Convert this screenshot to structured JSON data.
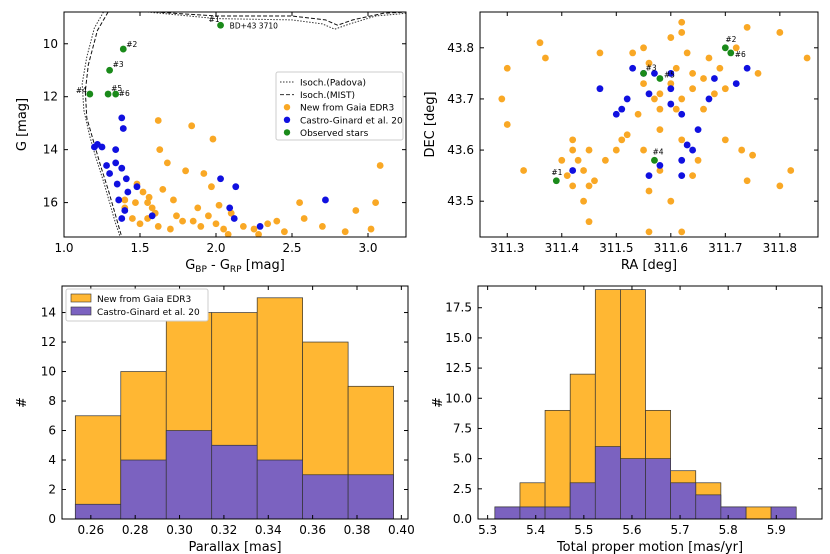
{
  "chart_data": [
    {
      "id": "cmd",
      "type": "scatter",
      "xlabel": "G_BP - G_RP [mag]",
      "xlabel_main": "G",
      "xlabel_sub1": "BP",
      "xlabel_mid": " - G",
      "xlabel_sub2": "RP",
      "xlabel_tail": " [mag]",
      "ylabel": "G [mag]",
      "xlim": [
        1.0,
        3.25
      ],
      "ylim": [
        17.3,
        8.8
      ],
      "y_inverted": true,
      "xticks": [
        1.0,
        1.5,
        2.0,
        2.5,
        3.0
      ],
      "xtick_labels": [
        "1.0",
        "1.5",
        "2.0",
        "2.5",
        "3.0"
      ],
      "yticks": [
        10,
        12,
        14,
        16
      ],
      "ytick_labels": [
        "10",
        "12",
        "14",
        "16"
      ],
      "legend_position": "middle-right",
      "legend": [
        "Isoch.(Padova)",
        "Isoch.(MIST)",
        "New from Gaia EDR3",
        "Castro-Ginard et al. 20",
        "Observed stars"
      ],
      "colors": {
        "new": "#f9a825",
        "castro": "#1010e0",
        "observed": "#1a8a1a"
      },
      "isochrone_padova": [
        [
          1.26,
          8.8
        ],
        [
          1.2,
          9.4
        ],
        [
          1.15,
          10.5
        ],
        [
          1.12,
          11.5
        ],
        [
          1.13,
          12.5
        ],
        [
          1.17,
          13.5
        ],
        [
          1.21,
          14.3
        ],
        [
          1.26,
          15.2
        ],
        [
          1.3,
          16.0
        ],
        [
          1.34,
          16.8
        ],
        [
          1.37,
          17.3
        ]
      ],
      "isochrone_padova_top": [
        [
          1.55,
          8.8
        ],
        [
          2.0,
          9.05
        ],
        [
          2.5,
          9.1
        ],
        [
          2.7,
          9.25
        ],
        [
          2.78,
          9.45
        ],
        [
          2.88,
          9.25
        ],
        [
          3.05,
          8.95
        ],
        [
          3.25,
          8.85
        ]
      ],
      "isochrone_mist": [
        [
          1.29,
          8.8
        ],
        [
          1.22,
          9.5
        ],
        [
          1.16,
          10.8
        ],
        [
          1.14,
          11.8
        ],
        [
          1.15,
          12.8
        ],
        [
          1.2,
          13.8
        ],
        [
          1.24,
          14.6
        ],
        [
          1.29,
          15.5
        ],
        [
          1.33,
          16.3
        ],
        [
          1.37,
          17.1
        ],
        [
          1.38,
          17.3
        ]
      ],
      "isochrone_mist_top": [
        [
          1.6,
          8.8
        ],
        [
          2.0,
          8.95
        ],
        [
          2.5,
          8.95
        ],
        [
          2.72,
          9.1
        ],
        [
          2.8,
          9.3
        ],
        [
          2.9,
          9.1
        ],
        [
          3.1,
          8.85
        ],
        [
          3.25,
          8.8
        ]
      ],
      "new_points": [
        [
          1.62,
          12.9
        ],
        [
          1.84,
          13.1
        ],
        [
          1.98,
          13.6
        ],
        [
          1.63,
          14.0
        ],
        [
          1.68,
          14.5
        ],
        [
          1.8,
          14.8
        ],
        [
          1.92,
          14.9
        ],
        [
          1.97,
          15.4
        ],
        [
          1.48,
          15.3
        ],
        [
          1.52,
          15.6
        ],
        [
          1.4,
          15.9
        ],
        [
          1.55,
          16.0
        ],
        [
          1.58,
          16.2
        ],
        [
          1.6,
          16.4
        ],
        [
          1.45,
          16.6
        ],
        [
          1.5,
          16.8
        ],
        [
          1.62,
          16.9
        ],
        [
          1.7,
          17.0
        ],
        [
          1.74,
          16.5
        ],
        [
          1.78,
          16.7
        ],
        [
          1.85,
          16.7
        ],
        [
          1.9,
          16.9
        ],
        [
          1.95,
          16.5
        ],
        [
          2.0,
          16.8
        ],
        [
          2.05,
          17.0
        ],
        [
          2.1,
          16.4
        ],
        [
          2.18,
          16.9
        ],
        [
          2.25,
          17.0
        ],
        [
          2.34,
          16.8
        ],
        [
          2.4,
          16.7
        ],
        [
          2.55,
          16.0
        ],
        [
          2.58,
          16.6
        ],
        [
          2.7,
          16.9
        ],
        [
          2.85,
          17.1
        ],
        [
          2.92,
          16.3
        ],
        [
          3.02,
          17.0
        ],
        [
          3.05,
          16.0
        ],
        [
          3.08,
          14.6
        ],
        [
          2.28,
          17.2
        ],
        [
          1.4,
          16.2
        ],
        [
          1.47,
          16.0
        ],
        [
          1.56,
          15.8
        ],
        [
          1.65,
          15.5
        ],
        [
          1.72,
          15.9
        ],
        [
          1.88,
          16.2
        ],
        [
          2.02,
          16.1
        ],
        [
          2.08,
          17.2
        ],
        [
          2.45,
          17.1
        ],
        [
          1.55,
          16.6
        ]
      ],
      "castro_points": [
        [
          1.38,
          12.8
        ],
        [
          1.39,
          13.2
        ],
        [
          1.22,
          13.8
        ],
        [
          1.2,
          13.9
        ],
        [
          1.25,
          13.9
        ],
        [
          1.34,
          14.0
        ],
        [
          1.34,
          14.5
        ],
        [
          1.28,
          14.6
        ],
        [
          1.38,
          14.7
        ],
        [
          1.3,
          14.9
        ],
        [
          1.41,
          15.1
        ],
        [
          1.35,
          15.3
        ],
        [
          1.48,
          15.4
        ],
        [
          1.42,
          15.6
        ],
        [
          1.4,
          16.3
        ],
        [
          1.38,
          16.6
        ],
        [
          1.58,
          16.5
        ],
        [
          2.03,
          15.1
        ],
        [
          2.13,
          15.4
        ],
        [
          2.09,
          16.2
        ],
        [
          2.12,
          16.6
        ],
        [
          2.29,
          16.9
        ],
        [
          2.72,
          15.9
        ],
        [
          1.36,
          15.9
        ]
      ],
      "observed_points": [
        [
          2.03,
          9.3
        ],
        [
          1.39,
          10.2
        ],
        [
          1.3,
          11.0
        ],
        [
          1.17,
          11.9
        ],
        [
          1.29,
          11.9
        ],
        [
          1.34,
          11.9
        ]
      ],
      "observed_labels": [
        "#1",
        "#2",
        "#3",
        "#4",
        "#5",
        "#6"
      ],
      "annotation": "BD+43  3710"
    },
    {
      "id": "sky",
      "type": "scatter",
      "xlabel": "RA [deg]",
      "ylabel": "DEC [deg]",
      "xlim": [
        311.25,
        311.87
      ],
      "ylim": [
        43.43,
        43.87
      ],
      "xticks": [
        311.3,
        311.4,
        311.5,
        311.6,
        311.7,
        311.8
      ],
      "xtick_labels": [
        "311.3",
        "311.4",
        "311.5",
        "311.6",
        "311.7",
        "311.8"
      ],
      "yticks": [
        43.5,
        43.6,
        43.7,
        43.8
      ],
      "ytick_labels": [
        "43.5",
        "43.6",
        "43.7",
        "43.8"
      ],
      "new_points": [
        [
          311.29,
          43.7
        ],
        [
          311.3,
          43.76
        ],
        [
          311.3,
          43.65
        ],
        [
          311.36,
          43.81
        ],
        [
          311.37,
          43.78
        ],
        [
          311.33,
          43.56
        ],
        [
          311.42,
          43.62
        ],
        [
          311.42,
          43.6
        ],
        [
          311.43,
          43.58
        ],
        [
          311.45,
          43.6
        ],
        [
          311.44,
          43.56
        ],
        [
          311.45,
          43.53
        ],
        [
          311.46,
          43.54
        ],
        [
          311.44,
          43.5
        ],
        [
          311.45,
          43.46
        ],
        [
          311.42,
          43.53
        ],
        [
          311.41,
          43.55
        ],
        [
          311.4,
          43.58
        ],
        [
          311.48,
          43.58
        ],
        [
          311.5,
          43.6
        ],
        [
          311.47,
          43.79
        ],
        [
          311.55,
          43.8
        ],
        [
          311.53,
          43.79
        ],
        [
          311.56,
          43.77
        ],
        [
          311.55,
          43.73
        ],
        [
          311.57,
          43.7
        ],
        [
          311.58,
          43.71
        ],
        [
          311.58,
          43.68
        ],
        [
          311.6,
          43.73
        ],
        [
          311.61,
          43.76
        ],
        [
          311.62,
          43.83
        ],
        [
          311.63,
          43.79
        ],
        [
          311.64,
          43.75
        ],
        [
          311.64,
          43.72
        ],
        [
          311.66,
          43.74
        ],
        [
          311.67,
          43.78
        ],
        [
          311.68,
          43.71
        ],
        [
          311.66,
          43.68
        ],
        [
          311.62,
          43.85
        ],
        [
          311.6,
          43.82
        ],
        [
          311.72,
          43.8
        ],
        [
          311.74,
          43.84
        ],
        [
          311.76,
          43.75
        ],
        [
          311.8,
          43.83
        ],
        [
          311.85,
          43.78
        ],
        [
          311.73,
          43.6
        ],
        [
          311.75,
          43.59
        ],
        [
          311.74,
          43.54
        ],
        [
          311.8,
          43.53
        ],
        [
          311.82,
          43.56
        ],
        [
          311.7,
          43.62
        ],
        [
          311.58,
          43.64
        ],
        [
          311.55,
          43.6
        ],
        [
          311.58,
          43.56
        ],
        [
          311.56,
          43.52
        ],
        [
          311.6,
          43.5
        ],
        [
          311.64,
          43.55
        ],
        [
          311.65,
          43.58
        ],
        [
          311.62,
          43.62
        ],
        [
          311.56,
          43.44
        ],
        [
          311.62,
          43.44
        ],
        [
          311.52,
          43.63
        ],
        [
          311.54,
          43.67
        ],
        [
          311.51,
          43.62
        ],
        [
          311.62,
          43.7
        ],
        [
          311.61,
          43.68
        ],
        [
          311.69,
          43.76
        ],
        [
          311.7,
          43.72
        ]
      ],
      "castro_points": [
        [
          311.47,
          43.72
        ],
        [
          311.5,
          43.67
        ],
        [
          311.52,
          43.7
        ],
        [
          311.53,
          43.76
        ],
        [
          311.55,
          43.75
        ],
        [
          311.56,
          43.71
        ],
        [
          311.57,
          43.75
        ],
        [
          311.6,
          43.72
        ],
        [
          311.6,
          43.69
        ],
        [
          311.62,
          43.67
        ],
        [
          311.63,
          43.61
        ],
        [
          311.64,
          43.6
        ],
        [
          311.65,
          43.64
        ],
        [
          311.67,
          43.7
        ],
        [
          311.68,
          43.74
        ],
        [
          311.72,
          43.73
        ],
        [
          311.74,
          43.76
        ],
        [
          311.56,
          43.55
        ],
        [
          311.58,
          43.57
        ],
        [
          311.62,
          43.55
        ],
        [
          311.62,
          43.58
        ],
        [
          311.42,
          43.56
        ],
        [
          311.51,
          43.68
        ],
        [
          311.6,
          43.75
        ]
      ],
      "observed_points": [
        [
          311.39,
          43.54
        ],
        [
          311.7,
          43.8
        ],
        [
          311.55,
          43.75
        ],
        [
          311.57,
          43.58
        ],
        [
          311.58,
          43.74
        ],
        [
          311.71,
          43.79
        ]
      ],
      "observed_labels": [
        "#1",
        "#2",
        "#3",
        "#4",
        "#5",
        "#6"
      ]
    },
    {
      "id": "parallax",
      "type": "bar",
      "xlabel": "Parallax [mas]",
      "ylabel": "#",
      "xlim": [
        0.247,
        0.403
      ],
      "ylim": [
        0,
        15.8
      ],
      "xticks": [
        0.26,
        0.28,
        0.3,
        0.32,
        0.34,
        0.36,
        0.38,
        0.4
      ],
      "xtick_labels": [
        "0.26",
        "0.28",
        "0.30",
        "0.32",
        "0.34",
        "0.36",
        "0.38",
        "0.40"
      ],
      "yticks": [
        0,
        2,
        4,
        6,
        8,
        10,
        12,
        14
      ],
      "ytick_labels": [
        "0",
        "2",
        "4",
        "6",
        "8",
        "10",
        "12",
        "14"
      ],
      "bin_edges": [
        0.253,
        0.2735,
        0.294,
        0.3145,
        0.335,
        0.3555,
        0.376,
        0.3965
      ],
      "legend": [
        "New from Gaia EDR3",
        "Castro-Ginard et al. 20"
      ],
      "legend_position": "top-left",
      "series": [
        {
          "name": "New from Gaia EDR3",
          "values": [
            7,
            10,
            14,
            14,
            15,
            12,
            9
          ]
        },
        {
          "name": "Castro-Ginard et al. 20",
          "values": [
            1,
            4,
            6,
            5,
            4,
            3,
            3
          ]
        }
      ]
    },
    {
      "id": "pm",
      "type": "bar",
      "xlabel": "Total proper motion [mas/yr]",
      "ylabel": "#",
      "xlim": [
        5.28,
        5.995
      ],
      "ylim": [
        0,
        19.3
      ],
      "xticks": [
        5.3,
        5.4,
        5.5,
        5.6,
        5.7,
        5.8,
        5.9
      ],
      "xtick_labels": [
        "5.3",
        "5.4",
        "5.5",
        "5.6",
        "5.7",
        "5.8",
        "5.9"
      ],
      "yticks": [
        0.0,
        2.5,
        5.0,
        7.5,
        10.0,
        12.5,
        15.0,
        17.5
      ],
      "ytick_labels": [
        "0.0",
        "2.5",
        "5.0",
        "7.5",
        "10.0",
        "12.5",
        "15.0",
        "17.5"
      ],
      "bin_edges": [
        5.315,
        5.3672,
        5.4194,
        5.4716,
        5.5238,
        5.576,
        5.6282,
        5.6804,
        5.7326,
        5.7848,
        5.837,
        5.8892,
        5.9414
      ],
      "series": [
        {
          "name": "New from Gaia EDR3",
          "values": [
            1,
            3,
            9,
            12,
            19,
            19,
            9,
            4,
            3,
            1,
            1,
            0
          ]
        },
        {
          "name": "Castro-Ginard et al. 20",
          "values": [
            1,
            1,
            1,
            3,
            6,
            5,
            5,
            3,
            2,
            1,
            0,
            1
          ]
        }
      ]
    }
  ]
}
